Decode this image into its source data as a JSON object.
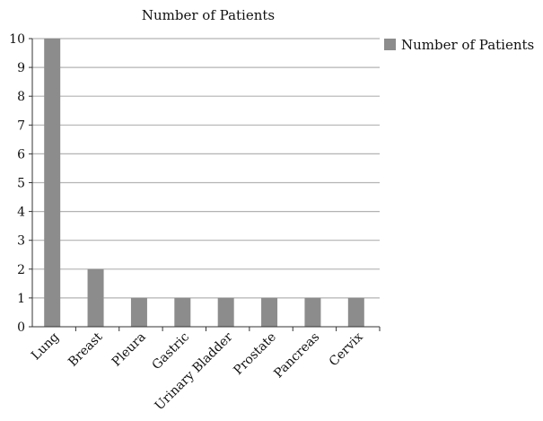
{
  "chart_data": {
    "type": "bar",
    "title": "Number of Patients",
    "categories": [
      "Lung",
      "Breast",
      "Pleura",
      "Gastric",
      "Urinary Bladder",
      "Prostate",
      "Pancreas",
      "Cervix"
    ],
    "series": [
      {
        "name": "Number of Patients",
        "values": [
          10,
          2,
          1,
          1,
          1,
          1,
          1,
          1
        ]
      }
    ],
    "y_ticks": [
      "0",
      "1",
      "2",
      "3",
      "4",
      "5",
      "6",
      "7",
      "8",
      "9",
      "10"
    ],
    "ylim": [
      0,
      10
    ],
    "grid": true,
    "legend_position": "top-right",
    "colors": {
      "bar": "#8c8c8c",
      "grid": "#b3b3b3",
      "axis": "#333333"
    }
  }
}
